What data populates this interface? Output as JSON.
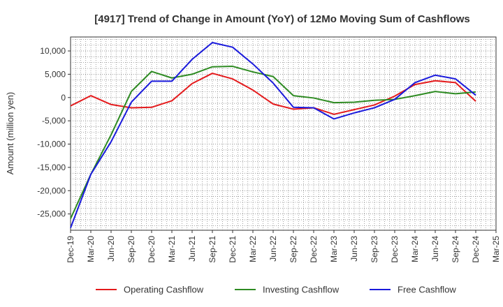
{
  "chart_data": {
    "type": "line",
    "title": "[4917]  Trend of Change in Amount (YoY) of 12Mo Moving Sum of Cashflows",
    "xlabel": "",
    "ylabel": "Amount (million yen)",
    "ylim": [
      -28500,
      13000
    ],
    "yticks": [
      10000,
      5000,
      0,
      -5000,
      -10000,
      -15000,
      -20000,
      -25000
    ],
    "ytick_labels": [
      "10,000",
      "5,000",
      "0",
      "-5,000",
      "-10,000",
      "-15,000",
      "-20,000",
      "-25,000"
    ],
    "grid": true,
    "legend_position": "bottom",
    "categories": [
      "Dec-19",
      "Mar-20",
      "Jun-20",
      "Sep-20",
      "Dec-20",
      "Mar-21",
      "Jun-21",
      "Sep-21",
      "Dec-21",
      "Mar-22",
      "Jun-22",
      "Sep-22",
      "Dec-22",
      "Mar-23",
      "Jun-23",
      "Sep-23",
      "Dec-23",
      "Mar-24",
      "Jun-24",
      "Sep-24",
      "Dec-24",
      "Mar-25"
    ],
    "series": [
      {
        "name": "Operating Cashflow",
        "color": "#e41a1c",
        "values": [
          -1800,
          400,
          -1500,
          -2200,
          -2100,
          -700,
          3000,
          5200,
          4000,
          1600,
          -1400,
          -2500,
          -2200,
          -3600,
          -2600,
          -1600,
          300,
          2800,
          3600,
          3200,
          -800,
          null
        ]
      },
      {
        "name": "Investing Cashflow",
        "color": "#2e8b22",
        "values": [
          -26000,
          -16500,
          -8000,
          1300,
          5600,
          4200,
          5000,
          6600,
          6700,
          5500,
          4500,
          400,
          -100,
          -1100,
          -1000,
          -600,
          -400,
          400,
          1300,
          800,
          1200,
          null
        ]
      },
      {
        "name": "Free Cashflow",
        "color": "#1a1adc",
        "values": [
          -28000,
          -16500,
          -9500,
          -1000,
          3500,
          3500,
          8200,
          11800,
          10800,
          7200,
          3100,
          -2100,
          -2200,
          -4600,
          -3300,
          -2200,
          -400,
          3200,
          4800,
          4000,
          500,
          null
        ]
      }
    ]
  }
}
